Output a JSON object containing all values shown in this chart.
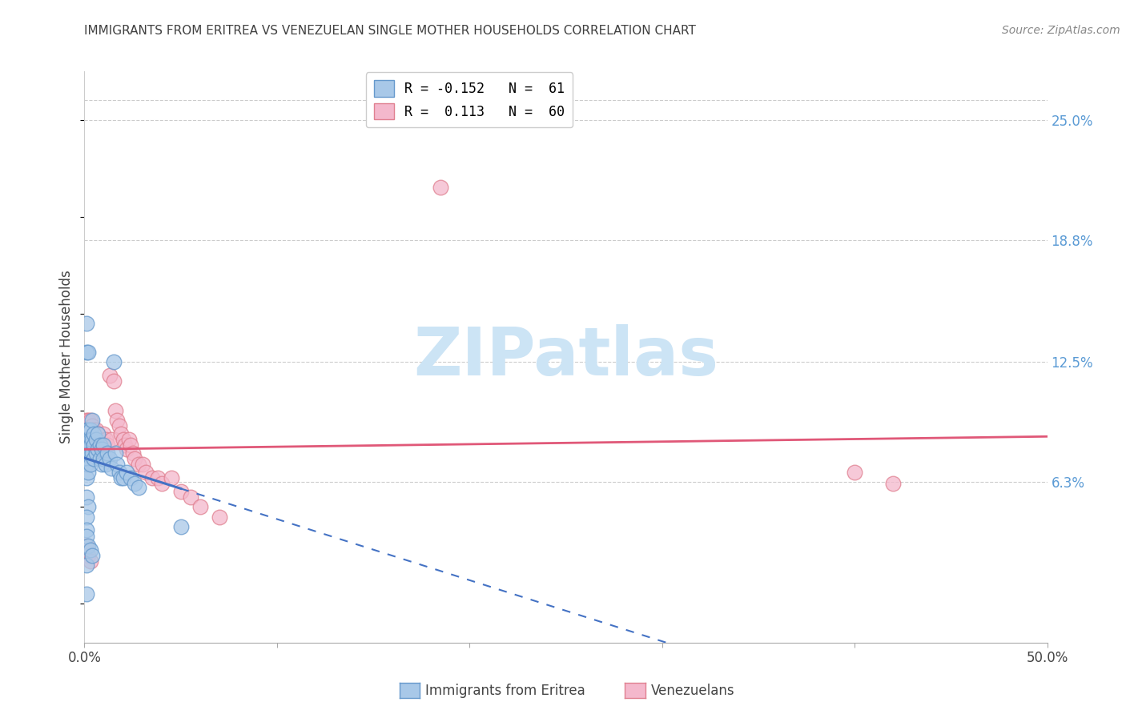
{
  "title": "IMMIGRANTS FROM ERITREA VS VENEZUELAN SINGLE MOTHER HOUSEHOLDS CORRELATION CHART",
  "source": "Source: ZipAtlas.com",
  "ylabel": "Single Mother Households",
  "ytick_labels": [
    "25.0%",
    "18.8%",
    "12.5%",
    "6.3%"
  ],
  "ytick_values": [
    0.25,
    0.188,
    0.125,
    0.063
  ],
  "xlim": [
    0.0,
    0.5
  ],
  "ylim": [
    -0.02,
    0.275
  ],
  "blue_color": "#a8c8e8",
  "blue_edge": "#6699cc",
  "pink_color": "#f4b8cc",
  "pink_edge": "#e08090",
  "blue_line_color": "#4472c4",
  "pink_line_color": "#e05878",
  "watermark_text": "ZIPatlas",
  "watermark_color": "#cce4f5",
  "background_color": "#ffffff",
  "grid_color": "#cccccc",
  "title_color": "#404040",
  "right_label_color": "#5b9bd5",
  "legend_blue_label": "R = -0.152   N =  61",
  "legend_pink_label": "R =  0.113   N =  60",
  "bottom_label_blue": "Immigrants from Eritrea",
  "bottom_label_pink": "Venezuelans",
  "blue_x": [
    0.001,
    0.001,
    0.001,
    0.001,
    0.001,
    0.001,
    0.001,
    0.001,
    0.001,
    0.002,
    0.002,
    0.002,
    0.002,
    0.002,
    0.002,
    0.003,
    0.003,
    0.003,
    0.003,
    0.003,
    0.004,
    0.004,
    0.004,
    0.005,
    0.005,
    0.005,
    0.006,
    0.006,
    0.007,
    0.007,
    0.008,
    0.008,
    0.009,
    0.009,
    0.01,
    0.01,
    0.011,
    0.012,
    0.013,
    0.014,
    0.015,
    0.016,
    0.017,
    0.018,
    0.019,
    0.02,
    0.022,
    0.024,
    0.026,
    0.028,
    0.001,
    0.002,
    0.001,
    0.001,
    0.05,
    0.001,
    0.001,
    0.002,
    0.003,
    0.004,
    0.001
  ],
  "blue_y": [
    0.145,
    0.13,
    0.09,
    0.085,
    0.08,
    0.078,
    0.075,
    0.072,
    0.065,
    0.13,
    0.09,
    0.085,
    0.08,
    0.075,
    0.068,
    0.09,
    0.085,
    0.082,
    0.078,
    0.072,
    0.095,
    0.085,
    0.078,
    0.088,
    0.082,
    0.075,
    0.085,
    0.078,
    0.088,
    0.08,
    0.082,
    0.075,
    0.08,
    0.072,
    0.082,
    0.075,
    0.072,
    0.078,
    0.075,
    0.07,
    0.125,
    0.078,
    0.072,
    0.068,
    0.065,
    0.065,
    0.068,
    0.065,
    0.062,
    0.06,
    0.055,
    0.05,
    0.045,
    0.02,
    0.04,
    0.038,
    0.035,
    0.03,
    0.028,
    0.025,
    0.005
  ],
  "pink_x": [
    0.001,
    0.001,
    0.001,
    0.001,
    0.001,
    0.001,
    0.002,
    0.002,
    0.002,
    0.002,
    0.003,
    0.003,
    0.003,
    0.003,
    0.004,
    0.004,
    0.004,
    0.005,
    0.005,
    0.006,
    0.006,
    0.007,
    0.007,
    0.008,
    0.008,
    0.009,
    0.01,
    0.011,
    0.012,
    0.013,
    0.014,
    0.015,
    0.016,
    0.017,
    0.018,
    0.019,
    0.02,
    0.021,
    0.022,
    0.023,
    0.024,
    0.025,
    0.026,
    0.028,
    0.03,
    0.032,
    0.035,
    0.038,
    0.04,
    0.045,
    0.05,
    0.055,
    0.06,
    0.07,
    0.4,
    0.42,
    0.001,
    0.002,
    0.003,
    0.185
  ],
  "pink_y": [
    0.095,
    0.09,
    0.085,
    0.082,
    0.078,
    0.072,
    0.095,
    0.088,
    0.082,
    0.075,
    0.095,
    0.09,
    0.085,
    0.078,
    0.092,
    0.085,
    0.078,
    0.09,
    0.082,
    0.09,
    0.082,
    0.088,
    0.078,
    0.085,
    0.078,
    0.082,
    0.088,
    0.085,
    0.082,
    0.118,
    0.085,
    0.115,
    0.1,
    0.095,
    0.092,
    0.088,
    0.085,
    0.082,
    0.08,
    0.085,
    0.082,
    0.078,
    0.075,
    0.072,
    0.072,
    0.068,
    0.065,
    0.065,
    0.062,
    0.065,
    0.058,
    0.055,
    0.05,
    0.045,
    0.068,
    0.062,
    0.03,
    0.025,
    0.022,
    0.215
  ]
}
